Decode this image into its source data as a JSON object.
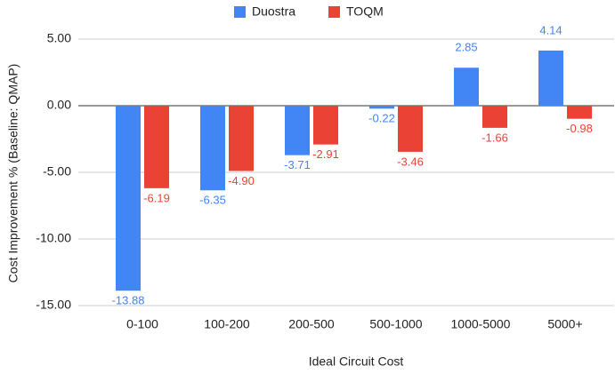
{
  "chart_data": {
    "type": "bar",
    "x_label": "Ideal Circuit Cost",
    "y_label": "Cost Improvement % (Baseline: QMAP)",
    "categories": [
      "0-100",
      "100-200",
      "200-500",
      "500-1000",
      "1000-5000",
      "5000+"
    ],
    "series": [
      {
        "name": "Duostra",
        "color": "#4285f4",
        "values": [
          -13.88,
          -6.35,
          -3.71,
          -0.22,
          2.85,
          4.14
        ],
        "value_labels": [
          "-13.88",
          "-6.35",
          "-3.71",
          "-0.22",
          "2.85",
          "4.14"
        ]
      },
      {
        "name": "TOQM",
        "color": "#ea4335",
        "values": [
          -6.19,
          -4.9,
          -2.91,
          -3.46,
          -1.66,
          -0.98
        ],
        "value_labels": [
          "-6.19",
          "-4.90",
          "-2.91",
          "-3.46",
          "-1.66",
          "-0.98"
        ]
      }
    ],
    "ylim": [
      -15,
      5
    ],
    "yticks": [
      {
        "value": 5,
        "label": "5.00"
      },
      {
        "value": 0,
        "label": "0.00"
      },
      {
        "value": -5,
        "label": "-5.00"
      },
      {
        "value": -10,
        "label": "-10.00"
      },
      {
        "value": -15,
        "label": "-15.00"
      }
    ],
    "grid": true,
    "legend": "top"
  }
}
